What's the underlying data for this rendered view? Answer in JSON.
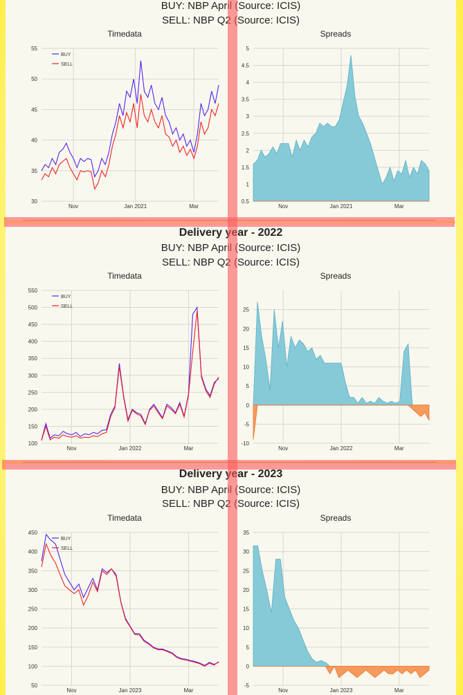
{
  "sections": [
    {
      "title": "",
      "buy": "BUY: NBP April (Source: ICIS)",
      "sell": "SELL: NBP Q2 (Source: ICIS)",
      "timedata_title": "Timedata",
      "spreads_title": "Spreads"
    },
    {
      "title": "Delivery year - 2022",
      "buy": "BUY: NBP April (Source: ICIS)",
      "sell": "SELL: NBP Q2 (Source: ICIS)",
      "timedata_title": "Timedata",
      "spreads_title": "Spreads"
    },
    {
      "title": "Delivery year - 2023",
      "buy": "BUY: NBP April (Source: ICIS)",
      "sell": "SELL: NBP Q2 (Source: ICIS)",
      "timedata_title": "Timedata",
      "spreads_title": "Spreads"
    }
  ],
  "colors": {
    "buy": "#5522ee",
    "sell": "#ee2222",
    "pos": "#86cad8",
    "neg": "#f79a5c",
    "grid": "#d8d8d0"
  },
  "chart_data": [
    {
      "type": "line",
      "title": "Timedata",
      "x_ticks": [
        "Nov",
        "Jan 2021",
        "Mar"
      ],
      "x_tick_pos": [
        0.18,
        0.53,
        0.86
      ],
      "ylim": [
        30,
        55
      ],
      "y_ticks": [
        30,
        35,
        40,
        45,
        50,
        55
      ],
      "legend": [
        "BUY",
        "SELL"
      ],
      "legend_position": "top-left",
      "series": [
        {
          "name": "BUY",
          "values": [
            35,
            36,
            35.5,
            37,
            36,
            38,
            38.5,
            39.5,
            38,
            37,
            35.5,
            37,
            36.5,
            37,
            36.8,
            34,
            35,
            37,
            36,
            38,
            41,
            43,
            46,
            44,
            48,
            47,
            50,
            46,
            53,
            48,
            47,
            49,
            46,
            45,
            47,
            44,
            43,
            41,
            42,
            40,
            41,
            39,
            40,
            38,
            41,
            46,
            44,
            45,
            48,
            46,
            49
          ]
        },
        {
          "name": "SELL",
          "values": [
            33.5,
            34.5,
            34,
            35.5,
            34.5,
            36,
            36.5,
            37,
            35.5,
            34.5,
            33.5,
            35,
            34.8,
            35,
            34.8,
            32,
            33,
            35,
            34,
            36,
            39,
            41,
            44,
            42,
            44.5,
            43,
            46,
            42,
            47.5,
            44,
            43,
            45,
            43,
            42,
            44,
            41,
            40.5,
            39,
            40,
            38,
            39,
            37.5,
            38.5,
            37,
            39,
            43,
            41,
            42,
            45,
            44,
            46
          ]
        }
      ]
    },
    {
      "type": "area",
      "title": "Spreads",
      "x_ticks": [
        "Nov",
        "Jan 2021",
        "Mar"
      ],
      "x_tick_pos": [
        0.17,
        0.5,
        0.83
      ],
      "ylim": [
        0.5,
        5.0
      ],
      "y_ticks": [
        0.5,
        1.0,
        1.5,
        2.0,
        2.5,
        3.0,
        3.5,
        4.0,
        4.5,
        5.0
      ],
      "values": [
        1.6,
        1.7,
        2.0,
        1.8,
        1.9,
        2.1,
        1.9,
        2.2,
        2.2,
        2.2,
        1.8,
        2.3,
        2.0,
        2.3,
        2.1,
        2.4,
        2.5,
        2.8,
        2.7,
        2.8,
        2.7,
        2.7,
        2.9,
        3.4,
        3.9,
        4.8,
        3.6,
        3.0,
        2.8,
        2.5,
        2.2,
        1.8,
        1.4,
        1.0,
        1.2,
        1.5,
        1.1,
        1.4,
        1.3,
        1.7,
        1.2,
        1.5,
        1.3,
        1.7,
        1.6,
        1.4
      ]
    },
    {
      "type": "line",
      "title": "Timedata",
      "x_ticks": [
        "Nov",
        "Jan 2022",
        "Mar"
      ],
      "x_tick_pos": [
        0.17,
        0.5,
        0.83
      ],
      "ylim": [
        100,
        550
      ],
      "y_ticks": [
        100,
        150,
        200,
        250,
        300,
        350,
        400,
        450,
        500,
        550
      ],
      "legend": [
        "BUY",
        "SELL"
      ],
      "legend_position": "top-left",
      "series": [
        {
          "name": "BUY",
          "values": [
            110,
            158,
            115,
            125,
            122,
            135,
            128,
            125,
            132,
            120,
            128,
            125,
            132,
            128,
            138,
            140,
            185,
            210,
            335,
            240,
            170,
            200,
            190,
            185,
            158,
            200,
            215,
            195,
            175,
            215,
            205,
            190,
            220,
            180,
            245,
            480,
            500,
            300,
            260,
            240,
            280,
            290
          ]
        },
        {
          "name": "SELL",
          "values": [
            108,
            150,
            110,
            118,
            115,
            125,
            120,
            118,
            122,
            115,
            118,
            117,
            122,
            120,
            128,
            132,
            178,
            205,
            325,
            235,
            165,
            197,
            187,
            180,
            155,
            197,
            210,
            190,
            172,
            210,
            200,
            187,
            215,
            177,
            240,
            370,
            490,
            295,
            255,
            235,
            275,
            295
          ]
        }
      ]
    },
    {
      "type": "area",
      "title": "Spreads",
      "x_ticks": [
        "Nov",
        "Jan 2022",
        "Mar"
      ],
      "x_tick_pos": [
        0.17,
        0.5,
        0.83
      ],
      "ylim": [
        -10,
        30
      ],
      "y_ticks": [
        -10,
        -5,
        0,
        5,
        10,
        15,
        20,
        25
      ],
      "values": [
        -9,
        27,
        18,
        12,
        4,
        25,
        15,
        22,
        10,
        18,
        15,
        17,
        16,
        14,
        15,
        12,
        13,
        11,
        11,
        11,
        11,
        11,
        6,
        2,
        2,
        0.5,
        2,
        0.5,
        1,
        0.5,
        2,
        1,
        0.5,
        1,
        0.5,
        1,
        14,
        16,
        -1,
        -2,
        -3,
        -2,
        -4
      ]
    },
    {
      "type": "line",
      "title": "Timedata",
      "x_ticks": [
        "Nov",
        "Jan 2023",
        "Mar"
      ],
      "x_tick_pos": [
        0.17,
        0.5,
        0.83
      ],
      "ylim": [
        50,
        450
      ],
      "y_ticks": [
        50,
        100,
        150,
        200,
        250,
        300,
        350,
        400,
        450
      ],
      "legend": [
        "BUY",
        "SELL"
      ],
      "legend_position": "top-left",
      "series": [
        {
          "name": "BUY",
          "values": [
            375,
            445,
            430,
            420,
            380,
            340,
            320,
            300,
            315,
            280,
            305,
            330,
            300,
            355,
            345,
            355,
            340,
            270,
            225,
            205,
            185,
            185,
            168,
            160,
            150,
            145,
            145,
            140,
            135,
            125,
            120,
            118,
            115,
            112,
            108,
            102,
            110,
            105,
            110
          ]
        },
        {
          "name": "SELL",
          "values": [
            360,
            420,
            390,
            370,
            340,
            310,
            300,
            290,
            300,
            260,
            285,
            320,
            295,
            350,
            340,
            355,
            335,
            268,
            222,
            203,
            183,
            182,
            165,
            158,
            148,
            143,
            143,
            138,
            133,
            123,
            118,
            116,
            113,
            110,
            106,
            100,
            108,
            103,
            112
          ]
        }
      ]
    },
    {
      "type": "area",
      "title": "Spreads",
      "x_ticks": [
        "Nov",
        "Jan 2023",
        "Mar"
      ],
      "x_tick_pos": [
        0.17,
        0.5,
        0.83
      ],
      "ylim": [
        -5,
        35
      ],
      "y_ticks": [
        -5,
        0,
        5,
        10,
        15,
        20,
        25,
        30,
        35
      ],
      "values": [
        31.5,
        31.5,
        25,
        20,
        14,
        28,
        28,
        18,
        15,
        12,
        10,
        7,
        4,
        2,
        1,
        1.5,
        1,
        -2,
        0,
        -3,
        -2,
        -1,
        -2,
        -3,
        -2,
        -1,
        -2,
        -3,
        -2,
        -1,
        -2,
        -2,
        -1,
        -2,
        -1,
        -2,
        -1,
        -3,
        -2,
        -1
      ]
    }
  ]
}
